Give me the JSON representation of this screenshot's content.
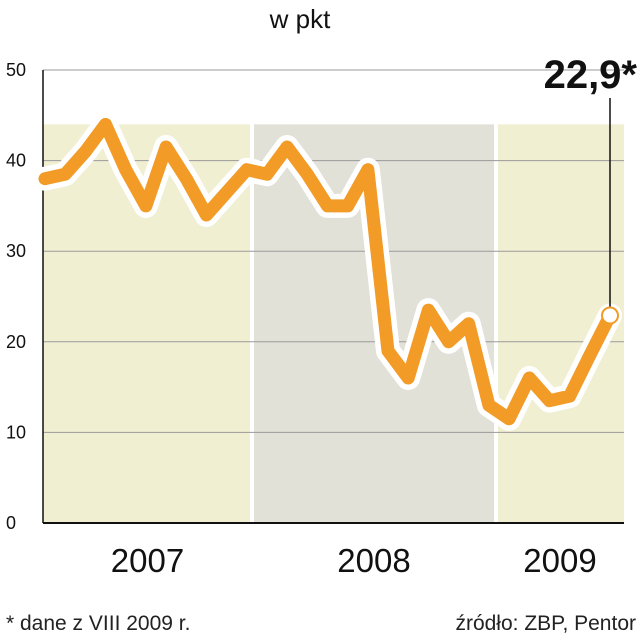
{
  "chart_data": {
    "type": "line",
    "title": "w pkt",
    "xlabel": "",
    "ylabel": "",
    "ylim": [
      0,
      50
    ],
    "yticks": [
      "0",
      "10",
      "20",
      "30",
      "40",
      "50"
    ],
    "grid": true,
    "periods": [
      {
        "label": "2007",
        "start_index": 0,
        "end_index": 10,
        "color": "#f1efd2"
      },
      {
        "label": "2008",
        "start_index": 10,
        "end_index": 22,
        "color": "#e1e1d8"
      },
      {
        "label": "2009",
        "start_index": 22,
        "end_index": 28,
        "color": "#f1efd2"
      }
    ],
    "series": [
      {
        "color": "#f29b26",
        "values": [
          38,
          38.5,
          41,
          44,
          39,
          35,
          41.5,
          38,
          34,
          36.5,
          39,
          38.5,
          41.5,
          38.5,
          35,
          35,
          39,
          19,
          16,
          23.5,
          20,
          22,
          13,
          11.5,
          16,
          13.5,
          14,
          18.5,
          22.9
        ]
      }
    ],
    "last_value_label": "22,9*"
  },
  "footnote": "* dane z VIII 2009 r.",
  "source": "źródło: ZBP, Pentor"
}
